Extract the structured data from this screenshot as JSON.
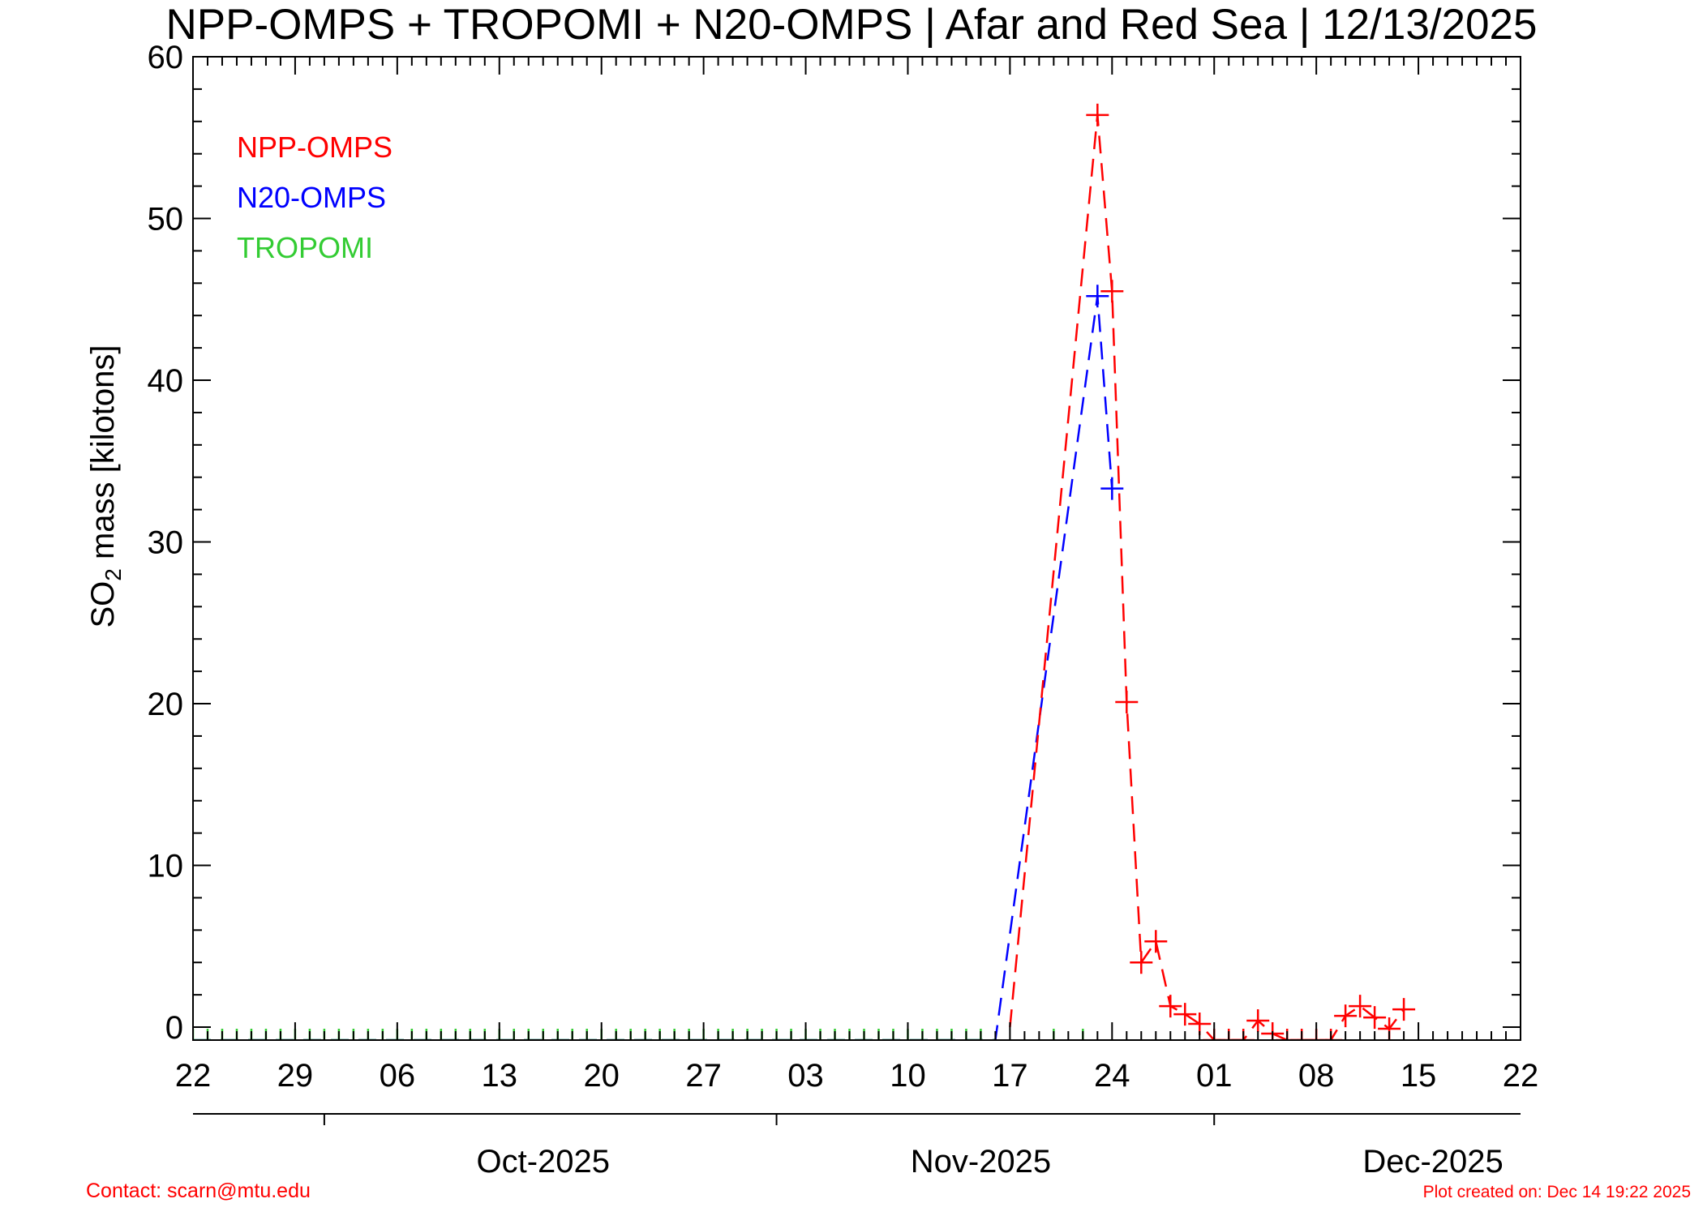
{
  "chart_data": {
    "type": "line",
    "title": "NPP-OMPS + TROPOMI + N20-OMPS | Afar and Red Sea | 12/13/2025",
    "ylabel": {
      "pre": "SO",
      "sub": "2",
      "post": " mass [kilotons]"
    },
    "ylim": [
      -0.8,
      60
    ],
    "yticks": [
      0,
      10,
      20,
      30,
      40,
      50,
      60
    ],
    "xlim": [
      "2025-09-22",
      "2025-12-22"
    ],
    "xtick_dates": [
      "2025-09-22",
      "2025-09-29",
      "2025-10-06",
      "2025-10-13",
      "2025-10-20",
      "2025-10-27",
      "2025-11-03",
      "2025-11-10",
      "2025-11-17",
      "2025-11-24",
      "2025-12-01",
      "2025-12-08",
      "2025-12-15",
      "2025-12-22"
    ],
    "xtick_labels": [
      "22",
      "29",
      "06",
      "13",
      "20",
      "27",
      "03",
      "10",
      "17",
      "24",
      "01",
      "08",
      "15",
      "22"
    ],
    "months": [
      {
        "label": "Oct-2025",
        "boundary": "2025-10-01",
        "center": "2025-10-16"
      },
      {
        "label": "Nov-2025",
        "boundary": "2025-11-01",
        "center": "2025-11-15"
      },
      {
        "label": "Dec-2025",
        "boundary": "2025-12-01",
        "center": "2025-12-16"
      }
    ],
    "legend_position": "top-left",
    "grid": false,
    "series": [
      {
        "name": "NPP-OMPS",
        "color": "#ff0000",
        "points": [
          [
            "2025-11-17",
            0
          ],
          [
            "2025-11-23",
            56.4
          ],
          [
            "2025-11-24",
            45.5
          ],
          [
            "2025-11-25",
            20.1
          ],
          [
            "2025-11-26",
            4.0
          ],
          [
            "2025-11-27",
            5.3
          ],
          [
            "2025-11-28",
            1.3
          ],
          [
            "2025-11-29",
            0.8
          ],
          [
            "2025-11-30",
            0.2
          ],
          [
            "2025-12-01",
            -0.8
          ],
          [
            "2025-12-02",
            -0.8
          ],
          [
            "2025-12-03",
            -0.8
          ],
          [
            "2025-12-04",
            0.4
          ],
          [
            "2025-12-05",
            -0.4
          ],
          [
            "2025-12-06",
            -0.8
          ],
          [
            "2025-12-07",
            -0.8
          ],
          [
            "2025-12-08",
            -0.8
          ],
          [
            "2025-12-09",
            -0.8
          ],
          [
            "2025-12-10",
            0.7
          ],
          [
            "2025-12-11",
            1.3
          ],
          [
            "2025-12-12",
            0.6
          ],
          [
            "2025-12-13",
            -0.1
          ],
          [
            "2025-12-14",
            1.1
          ]
        ],
        "markers_from": "2025-11-23"
      },
      {
        "name": "N20-OMPS",
        "color": "#0000ff",
        "points": [
          [
            "2025-09-22",
            -0.8
          ],
          [
            "2025-11-16",
            -0.8
          ],
          [
            "2025-11-23",
            45.2
          ],
          [
            "2025-11-24",
            33.3
          ]
        ],
        "markers_at": [
          "2025-11-23",
          "2025-11-24"
        ]
      },
      {
        "name": "TROPOMI",
        "color": "#33cc33",
        "points": [
          [
            "2025-09-22",
            -0.8
          ],
          [
            "2025-11-16",
            -0.8
          ]
        ],
        "daily_ticks": {
          "from": "2025-09-22",
          "to": "2025-11-15"
        },
        "extra_ticks": [
          "2025-11-20",
          "2025-11-22"
        ]
      }
    ]
  },
  "footer": {
    "contact": "Contact: scarn@mtu.edu",
    "created": "Plot created on: Dec 14 19:22 2025"
  }
}
